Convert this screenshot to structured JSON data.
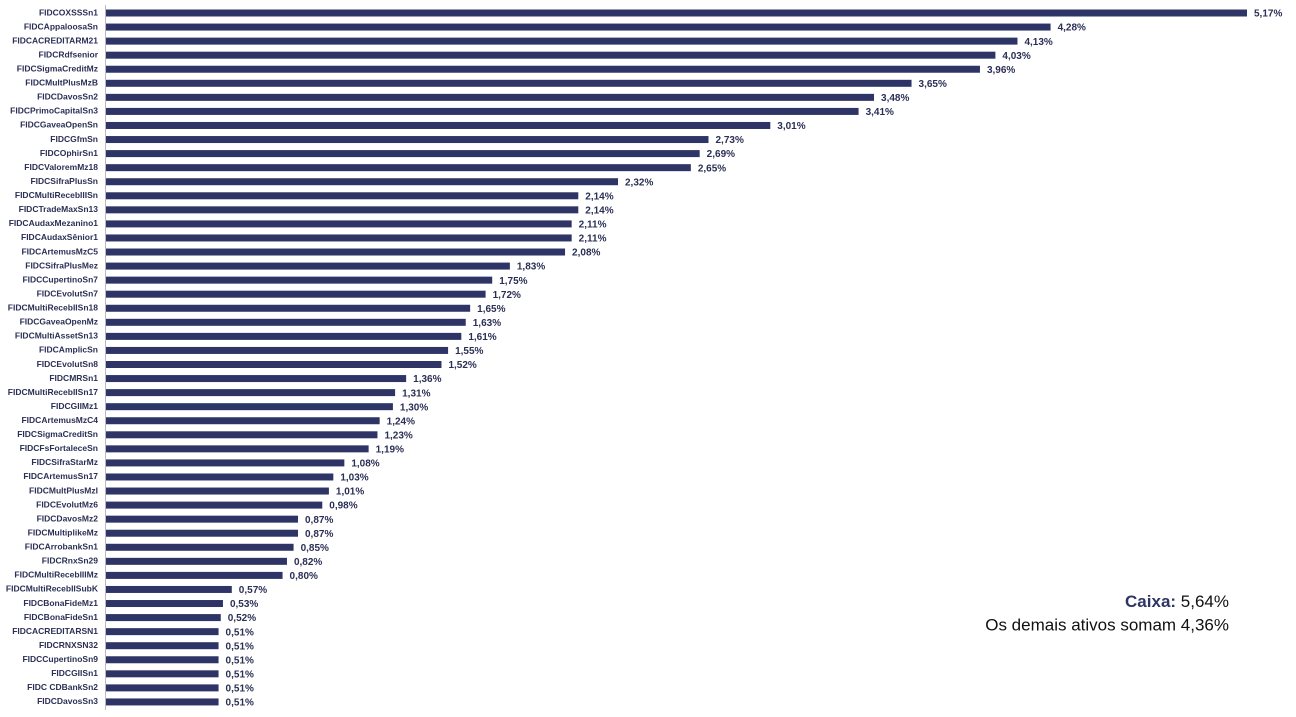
{
  "chart_data": {
    "type": "bar",
    "orientation": "horizontal",
    "color": "#2e3566",
    "categories": [
      "FIDCOXSSSn1",
      "FIDCAppaloosaSn",
      "FIDCACREDITARM21",
      "FIDCRdfsenior",
      "FIDCSigmaCreditMz",
      "FIDCMultPlusMzB",
      "FIDCDavosSn2",
      "FIDCPrimoCapitalSn3",
      "FIDCGaveaOpenSn",
      "FIDCGfmSn",
      "FIDCOphirSn1",
      "FIDCValoremMz18",
      "FIDCSifraPlusSn",
      "FIDCMultiRecebIIISn",
      "FIDCTradeMaxSn13",
      "FIDCAudaxMezanino1",
      "FIDCAudaxSênior1",
      "FIDCArtemusMzC5",
      "FIDCSifraPlusMez",
      "FIDCCupertinoSn7",
      "FIDCEvolutSn7",
      "FIDCMultiRecebIISn18",
      "FIDCGaveaOpenMz",
      "FIDCMultiAssetSn13",
      "FIDCAmplicSn",
      "FIDCEvolutSn8",
      "FIDCMRSn1",
      "FIDCMultiRecebIISn17",
      "FIDCGIIMz1",
      "FIDCArtemusMzC4",
      "FIDCSigmaCreditSn",
      "FIDCFsFortaleceSn",
      "FIDCSifraStarMz",
      "FIDCArtemusSn17",
      "FIDCMultPlusMzI",
      "FIDCEvolutMz6",
      "FIDCDavosMz2",
      "FIDCMultiplikeMz",
      "FIDCArrobankSn1",
      "FIDCRnxSn29",
      "FIDCMultiRecebIIIMz",
      "FIDCMultiRecebIISubK",
      "FIDCBonaFideMz1",
      "FIDCBonaFideSn1",
      "FIDCACREDITARSN1",
      "FIDCRNXSN32",
      "FIDCCupertinoSn9",
      "FIDCGIISn1",
      "FIDC CDBankSn2",
      "FIDCDavosSn3"
    ],
    "values": [
      5.17,
      4.28,
      4.13,
      4.03,
      3.96,
      3.65,
      3.48,
      3.41,
      3.01,
      2.73,
      2.69,
      2.65,
      2.32,
      2.14,
      2.14,
      2.11,
      2.11,
      2.08,
      1.83,
      1.75,
      1.72,
      1.65,
      1.63,
      1.61,
      1.55,
      1.52,
      1.36,
      1.31,
      1.3,
      1.24,
      1.23,
      1.19,
      1.08,
      1.03,
      1.01,
      0.98,
      0.87,
      0.87,
      0.85,
      0.82,
      0.8,
      0.57,
      0.53,
      0.52,
      0.51,
      0.51,
      0.51,
      0.51,
      0.51,
      0.51
    ],
    "value_labels": [
      "5,17%",
      "4,28%",
      "4,13%",
      "4,03%",
      "3,96%",
      "3,65%",
      "3,48%",
      "3,41%",
      "3,01%",
      "2,73%",
      "2,69%",
      "2,65%",
      "2,32%",
      "2,14%",
      "2,14%",
      "2,11%",
      "2,11%",
      "2,08%",
      "1,83%",
      "1,75%",
      "1,72%",
      "1,65%",
      "1,63%",
      "1,61%",
      "1,55%",
      "1,52%",
      "1,36%",
      "1,31%",
      "1,30%",
      "1,24%",
      "1,23%",
      "1,19%",
      "1,08%",
      "1,03%",
      "1,01%",
      "0,98%",
      "0,87%",
      "0,87%",
      "0,85%",
      "0,82%",
      "0,80%",
      "0,57%",
      "0,53%",
      "0,52%",
      "0,51%",
      "0,51%",
      "0,51%",
      "0,51%",
      "0,51%",
      "0,51%"
    ],
    "annotations": [
      {
        "label": "Caixa:",
        "text": "5,64%"
      },
      {
        "text": "Os demais ativos somam 4,36%"
      }
    ]
  }
}
